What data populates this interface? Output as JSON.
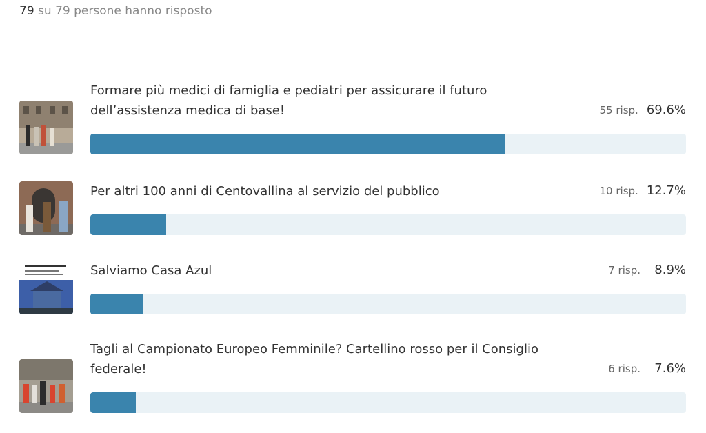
{
  "header": {
    "answered": 79,
    "connector": "su",
    "total": 79,
    "suffix": "persone hanno risposto"
  },
  "options": [
    {
      "label": "Formare più medici di famiglia e pediatri per assicurare il futuro dell’assistenza medica di base!",
      "responses": {
        "value": 55,
        "label": "55 risp."
      },
      "percent": {
        "value": 69.6,
        "label": "69.6%"
      }
    },
    {
      "label": "Per altri 100 anni di Centovallina al servizio del pubblico",
      "responses": {
        "value": 10,
        "label": "10 risp."
      },
      "percent": {
        "value": 12.7,
        "label": "12.7%"
      }
    },
    {
      "label": "Salviamo Casa Azul",
      "responses": {
        "value": 7,
        "label": "7 risp."
      },
      "percent": {
        "value": 8.9,
        "label": "8.9%"
      }
    },
    {
      "label": "Tagli al Campionato Europeo Femminile? Cartellino rosso per il Consiglio federale!",
      "responses": {
        "value": 6,
        "label": "6 risp."
      },
      "percent": {
        "value": 7.6,
        "label": "7.6%"
      }
    }
  ]
}
